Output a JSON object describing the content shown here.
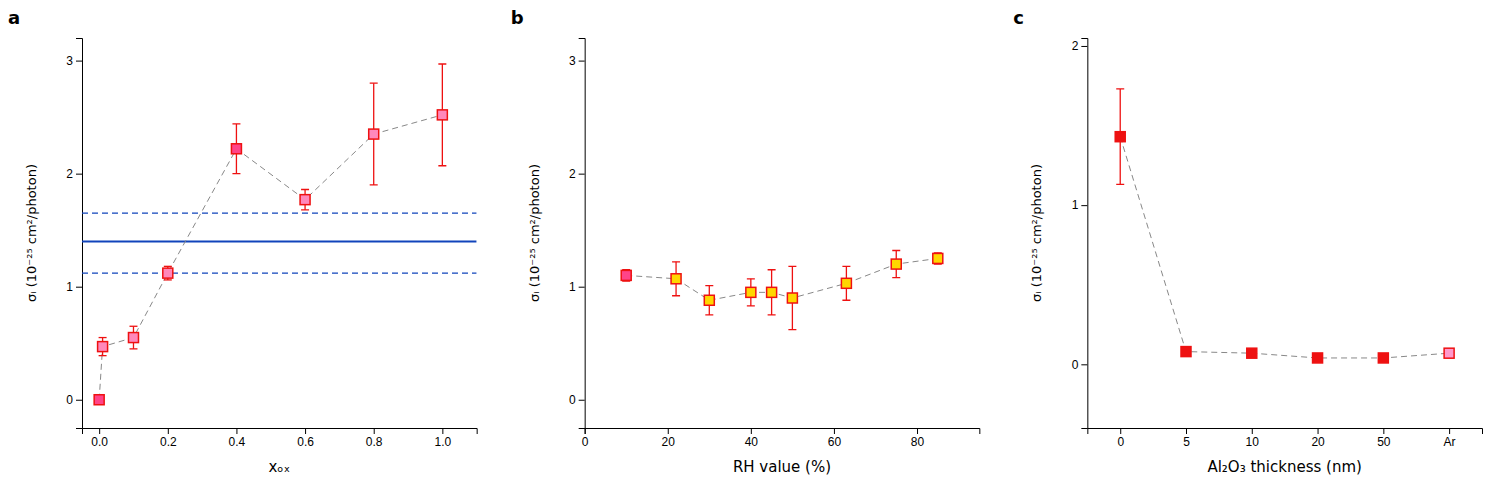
{
  "chart_data": [
    {
      "type": "line",
      "title": "a",
      "x_label": "xₒₓ",
      "y_label": "σᵢ (10⁻²⁵ cm²/photon)",
      "x": [
        0.0,
        0.01,
        0.1,
        0.2,
        0.4,
        0.6,
        0.8,
        1.0
      ],
      "values": [
        0.0,
        0.47,
        0.55,
        1.12,
        2.22,
        1.77,
        2.35,
        2.52
      ],
      "errors": [
        0.02,
        0.08,
        0.1,
        0.06,
        0.22,
        0.09,
        0.45,
        0.45
      ],
      "colors": [
        "#FF4488",
        "#FF88BB",
        "#FF88BB",
        "#FF88BB",
        "#FF4488",
        "#FF88BB",
        "#FF88BB",
        "#FF88BB"
      ],
      "color": "#EE1111",
      "marker": "square",
      "line_style": "dashed",
      "hlines": [
        {
          "value": 1.4,
          "color": "#1144BB",
          "line_style": "solid"
        },
        {
          "value": 1.65,
          "color": "#1144BB",
          "line_style": "dashed"
        },
        {
          "value": 1.12,
          "color": "#1144BB",
          "line_style": "dashed"
        }
      ],
      "xlim": [
        -0.05,
        1.1
      ],
      "xticks": [
        {
          "value": 0.0,
          "label": "0.0"
        },
        0.2,
        0.4,
        0.6,
        0.8,
        {
          "value": 1.0,
          "label": "1.0"
        }
      ],
      "ylim": [
        -0.25,
        3.2
      ],
      "yticks": [
        0,
        1,
        2,
        3
      ],
      "grid": false
    },
    {
      "type": "line",
      "title": "b",
      "x_label": "RH value (%)",
      "y_label": "σᵢ (10⁻²⁵ cm²/photon)",
      "x": [
        10,
        22,
        30,
        40,
        45,
        50,
        63,
        75,
        85
      ],
      "values": [
        1.1,
        1.07,
        0.88,
        0.95,
        0.95,
        0.9,
        1.03,
        1.2,
        1.25
      ],
      "errors": [
        0.05,
        0.15,
        0.13,
        0.12,
        0.2,
        0.28,
        0.15,
        0.12,
        0.05
      ],
      "colors": [
        "#FF4488",
        "#FFD700",
        "#FFD700",
        "#FFD700",
        "#FFD700",
        "#FFD700",
        "#FFD700",
        "#FFD700",
        "#FFD700"
      ],
      "color": "#EE1111",
      "marker": "square",
      "line_style": "dashed",
      "xlim": [
        0,
        95
      ],
      "xticks": [
        0,
        20,
        40,
        60,
        80
      ],
      "ylim": [
        -0.25,
        3.2
      ],
      "yticks": [
        0,
        1,
        2,
        3
      ],
      "grid": false
    },
    {
      "type": "line",
      "title": "c",
      "x_label": "Al₂O₃ thickness (nm)",
      "y_label": "σᵢ (10⁻²⁵ cm²/photon)",
      "categories": [
        "0",
        "5",
        "10",
        "20",
        "50",
        "Ar"
      ],
      "values": [
        1.43,
        0.08,
        0.07,
        0.04,
        0.04,
        0.07
      ],
      "errors": [
        0.3,
        0.0,
        0.0,
        0.0,
        0.0,
        0.0
      ],
      "colors": [
        "#EE1111",
        "#EE1111",
        "#EE1111",
        "#EE1111",
        "#EE1111",
        "#FF99CC"
      ],
      "color": "#EE1111",
      "marker": "square",
      "line_style": "dashed",
      "ylim": [
        -0.4,
        2.05
      ],
      "yticks": [
        0,
        1,
        2
      ],
      "grid": false
    }
  ]
}
